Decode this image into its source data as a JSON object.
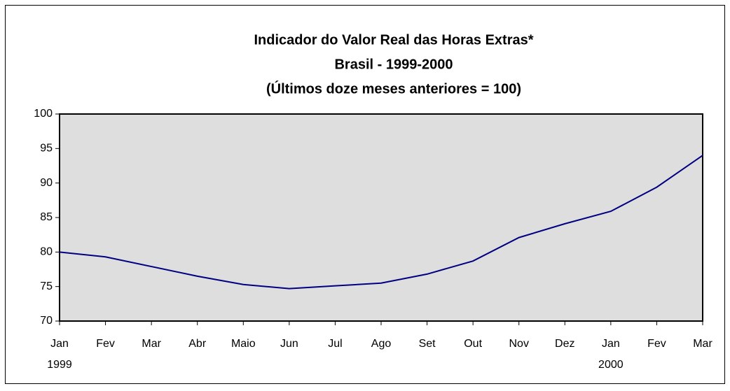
{
  "chart_data": {
    "type": "line",
    "title": "Indicador do Valor Real das Horas Extras*",
    "subtitle": [
      "Brasil - 1999-2000",
      "(Últimos doze meses anteriores = 100)"
    ],
    "categories": [
      "Jan",
      "Fev",
      "Mar",
      "Abr",
      "Maio",
      "Jun",
      "Jul",
      "Ago",
      "Set",
      "Out",
      "Nov",
      "Dez",
      "Jan",
      "Fev",
      "Mar"
    ],
    "year_labels": [
      {
        "index": 0,
        "label": "1999"
      },
      {
        "index": 12,
        "label": "2000"
      }
    ],
    "series": [
      {
        "name": "Indicador",
        "color": "#000080",
        "values": [
          80,
          79.3,
          77.9,
          76.5,
          75.3,
          74.7,
          75.1,
          75.5,
          76.8,
          78.7,
          82.1,
          84.1,
          85.9,
          89.4,
          94
        ]
      }
    ],
    "ylim": [
      70,
      100
    ],
    "yticks": [
      70,
      75,
      80,
      85,
      90,
      95,
      100
    ],
    "grid": false,
    "plot_background": "#dedede"
  }
}
